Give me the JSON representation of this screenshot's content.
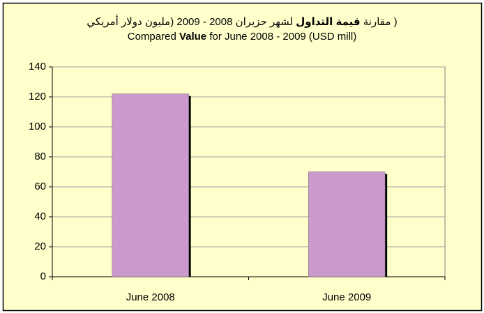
{
  "chart_data": {
    "type": "bar",
    "title_lines": [
      [
        {
          "text": "( مقارنة ",
          "bold": false
        },
        {
          "text": "قيمة التداول",
          "bold": true
        },
        {
          "text": " لشهر حزيران 2008 - 2009 (مليون دولار أمريكي",
          "bold": false
        }
      ],
      [
        {
          "text": "Compared ",
          "bold": false
        },
        {
          "text": "Value",
          "bold": true
        },
        {
          "text": " for June 2008 - 2009 (USD mill)",
          "bold": false
        }
      ]
    ],
    "categories": [
      "June 2008",
      "June 2009"
    ],
    "values": [
      122,
      70
    ],
    "color": "#cc99cc",
    "ylim": [
      0,
      140
    ],
    "yticks": [
      0,
      20,
      40,
      60,
      80,
      100,
      120,
      140
    ],
    "grid": true
  }
}
